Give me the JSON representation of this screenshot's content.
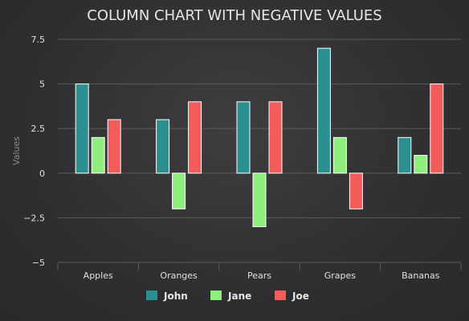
{
  "chart_data": {
    "type": "bar",
    "title": "COLUMN CHART WITH NEGATIVE VALUES",
    "xlabel": "",
    "ylabel": "Values",
    "categories": [
      "Apples",
      "Oranges",
      "Pears",
      "Grapes",
      "Bananas"
    ],
    "series": [
      {
        "name": "John",
        "color": "#2b908f",
        "values": [
          5,
          3,
          4,
          7,
          2
        ]
      },
      {
        "name": "Jane",
        "color": "#90ee7e",
        "values": [
          2,
          -2,
          -3,
          2,
          1
        ]
      },
      {
        "name": "Joe",
        "color": "#f45b5b",
        "values": [
          3,
          4,
          4,
          -2,
          5
        ]
      }
    ],
    "ylim": [
      -5,
      7.5
    ],
    "yticks": [
      -5,
      -2.5,
      0,
      2.5,
      5,
      7.5
    ],
    "ytick_labels": [
      "−5",
      "−2.5",
      "0",
      "2.5",
      "5",
      "7.5"
    ],
    "grid": true,
    "legend_position": "bottom-center"
  }
}
